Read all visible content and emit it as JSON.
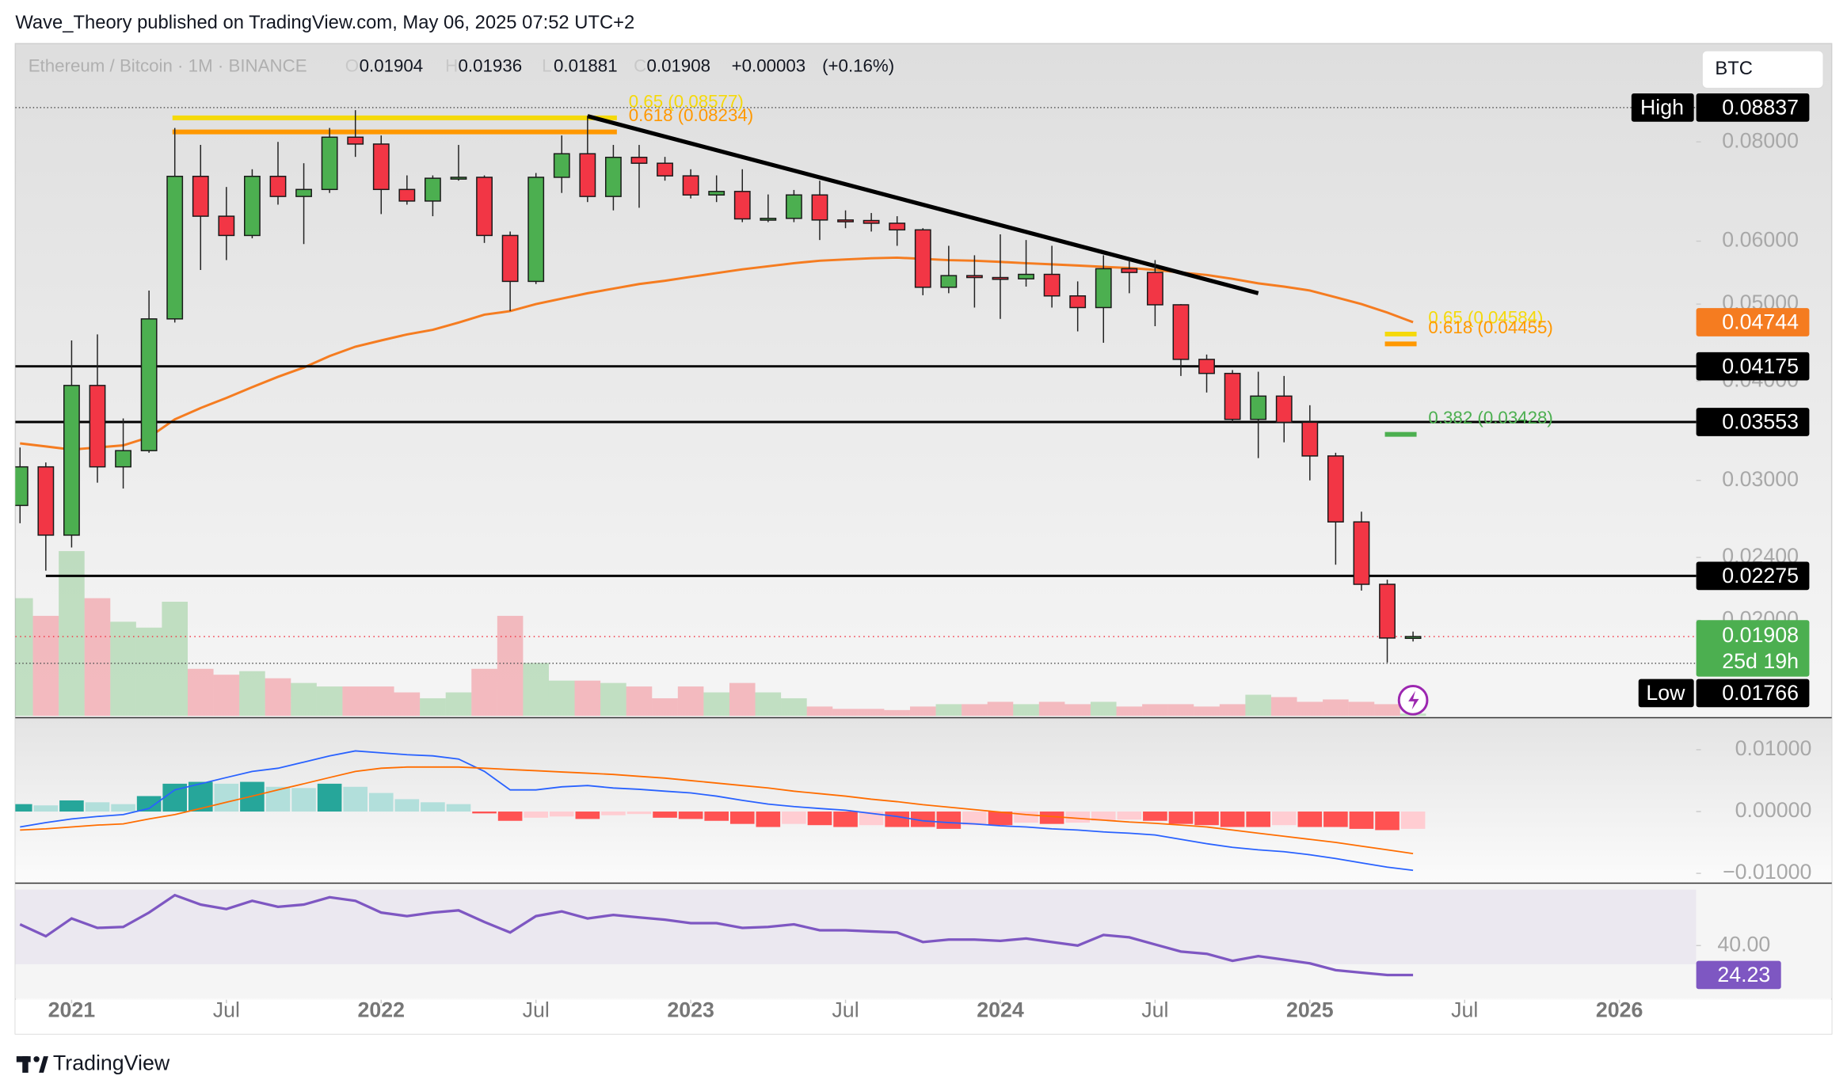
{
  "header": {
    "text": "Wave_Theory published on TradingView.com, May 06, 2025 07:52 UTC+2"
  },
  "footer": {
    "brand": "TradingView"
  },
  "chart_data": {
    "type": "candlestick",
    "symbol": "Ethereum / Bitcoin · 1M · BINANCE",
    "currency": "BTC",
    "legend_labels": [
      "O",
      "H",
      "L",
      "C"
    ],
    "change": {
      "value": 3e-05,
      "label": "+0.00003"
    },
    "change_percent": {
      "value": 0.16,
      "label": "(+0.16%)"
    },
    "log": true,
    "up_color": "#4caf50",
    "down_color": "#f23645",
    "x": [
      "2020-11",
      "2020-12",
      "2021-01",
      "2021-02",
      "2021-03",
      "2021-04",
      "2021-05",
      "2021-06",
      "2021-07",
      "2021-08",
      "2021-09",
      "2021-10",
      "2021-11",
      "2021-12",
      "2022-01",
      "2022-02",
      "2022-03",
      "2022-04",
      "2022-05",
      "2022-06",
      "2022-07",
      "2022-08",
      "2022-09",
      "2022-10",
      "2022-11",
      "2022-12",
      "2023-01",
      "2023-02",
      "2023-03",
      "2023-04",
      "2023-05",
      "2023-06",
      "2023-07",
      "2023-08",
      "2023-09",
      "2023-10",
      "2023-11",
      "2023-12",
      "2024-01",
      "2024-02",
      "2024-03",
      "2024-04",
      "2024-05",
      "2024-06",
      "2024-07",
      "2024-08",
      "2024-09",
      "2024-10",
      "2024-11",
      "2024-12",
      "2025-01",
      "2025-02",
      "2025-03",
      "2025-04",
      "2025-05"
    ],
    "open": [
      0.0279,
      0.0312,
      0.0256,
      0.0395,
      0.0312,
      0.0327,
      0.0479,
      0.0724,
      0.0645,
      0.061,
      0.0724,
      0.0683,
      0.0697,
      0.0811,
      0.0795,
      0.0697,
      0.0674,
      0.072,
      0.0722,
      0.061,
      0.0534,
      0.0722,
      0.0773,
      0.0683,
      0.0765,
      0.0752,
      0.0725,
      0.0686,
      0.0693,
      0.064,
      0.0641,
      0.0686,
      0.0638,
      0.0637,
      0.0632,
      0.062,
      0.0525,
      0.0543,
      0.054,
      0.0538,
      0.0545,
      0.0512,
      0.0495,
      0.0554,
      0.0548,
      0.0499,
      0.0426,
      0.0409,
      0.0358,
      0.0383,
      0.0355,
      0.0322,
      0.0266,
      0.0222,
      0.01904
    ],
    "high": [
      0.033,
      0.0316,
      0.045,
      0.0458,
      0.0359,
      0.052,
      0.0833,
      0.0793,
      0.0702,
      0.0739,
      0.08,
      0.0752,
      0.0833,
      0.0877,
      0.0815,
      0.0726,
      0.0726,
      0.0793,
      0.0726,
      0.0617,
      0.0731,
      0.0815,
      0.0863,
      0.0793,
      0.0793,
      0.0766,
      0.0739,
      0.0726,
      0.0739,
      0.0687,
      0.0696,
      0.0715,
      0.0656,
      0.0651,
      0.0645,
      0.0623,
      0.0592,
      0.0576,
      0.0612,
      0.0602,
      0.0592,
      0.0534,
      0.0576,
      0.0568,
      0.0568,
      0.05,
      0.0432,
      0.0413,
      0.0411,
      0.0406,
      0.0373,
      0.0325,
      0.0274,
      0.0225,
      0.01936
    ],
    "low": [
      0.0265,
      0.0231,
      0.0247,
      0.0298,
      0.0293,
      0.0325,
      0.0474,
      0.0552,
      0.0568,
      0.0605,
      0.0667,
      0.0595,
      0.069,
      0.0766,
      0.0649,
      0.0667,
      0.0645,
      0.0715,
      0.0597,
      0.049,
      0.053,
      0.069,
      0.0672,
      0.0656,
      0.0661,
      0.0715,
      0.0679,
      0.0672,
      0.0634,
      0.0634,
      0.0634,
      0.0602,
      0.0623,
      0.0617,
      0.0592,
      0.0513,
      0.0516,
      0.0495,
      0.0479,
      0.0526,
      0.0495,
      0.0462,
      0.0447,
      0.0516,
      0.0469,
      0.0406,
      0.0387,
      0.0355,
      0.032,
      0.0335,
      0.03,
      0.0235,
      0.0218,
      0.0177,
      0.01881
    ],
    "close": [
      0.0312,
      0.0256,
      0.0395,
      0.0312,
      0.0327,
      0.0479,
      0.0724,
      0.0645,
      0.061,
      0.0724,
      0.0683,
      0.0697,
      0.0811,
      0.0795,
      0.0697,
      0.0674,
      0.072,
      0.0722,
      0.061,
      0.0534,
      0.0722,
      0.0773,
      0.0683,
      0.0765,
      0.0752,
      0.0725,
      0.0686,
      0.0693,
      0.064,
      0.0641,
      0.0686,
      0.0638,
      0.0637,
      0.0632,
      0.062,
      0.0525,
      0.0543,
      0.054,
      0.0538,
      0.0545,
      0.0512,
      0.0495,
      0.0554,
      0.0548,
      0.0499,
      0.0426,
      0.0409,
      0.0358,
      0.0383,
      0.0355,
      0.0322,
      0.0266,
      0.0222,
      0.019,
      0.01908
    ],
    "countdown": "25d 19h",
    "ylim": [
      0.01516,
      0.106
    ],
    "yticks": [
      {
        "value": 0.08,
        "label": "0.08000"
      },
      {
        "value": 0.06,
        "label": "0.06000"
      },
      {
        "value": 0.05,
        "label": "0.05000"
      },
      {
        "value": 0.04,
        "label": "0.04000"
      },
      {
        "value": 0.03,
        "label": "0.03000"
      },
      {
        "value": 0.024,
        "label": "0.02400"
      },
      {
        "value": 0.02,
        "label": "0.02000"
      }
    ],
    "xticks": [
      {
        "value": "2021-01",
        "label": "2021"
      },
      {
        "value": "2021-07",
        "label": "Jul"
      },
      {
        "value": "2022-01",
        "label": "2022"
      },
      {
        "value": "2022-07",
        "label": "Jul"
      },
      {
        "value": "2023-01",
        "label": "2023"
      },
      {
        "value": "2023-07",
        "label": "Jul"
      },
      {
        "value": "2024-01",
        "label": "2024"
      },
      {
        "value": "2024-07",
        "label": "Jul"
      },
      {
        "value": "2025-01",
        "label": "2025"
      },
      {
        "value": "2025-07",
        "label": "Jul"
      },
      {
        "value": "2026-01",
        "label": "2026"
      }
    ],
    "ma": {
      "color": "#f57c20",
      "values": [
        0.0334,
        0.0331,
        0.0328,
        0.033,
        0.0332,
        0.034,
        0.0358,
        0.037,
        0.0381,
        0.0393,
        0.0405,
        0.0416,
        0.043,
        0.0442,
        0.045,
        0.0458,
        0.0464,
        0.0474,
        0.0485,
        0.049,
        0.05,
        0.0508,
        0.0516,
        0.0523,
        0.053,
        0.0535,
        0.0541,
        0.0547,
        0.0553,
        0.0558,
        0.0563,
        0.0567,
        0.0569,
        0.0571,
        0.0572,
        0.057,
        0.0568,
        0.0567,
        0.0565,
        0.0563,
        0.0561,
        0.0559,
        0.0557,
        0.0555,
        0.0552,
        0.0548,
        0.0544,
        0.0538,
        0.0531,
        0.0526,
        0.052,
        0.051,
        0.05,
        0.0488,
        0.04744
      ]
    },
    "volume": {
      "values": [
        100,
        85,
        140,
        100,
        80,
        75,
        97,
        40,
        35,
        38,
        32,
        28,
        25,
        25,
        25,
        20,
        15,
        20,
        40,
        85,
        45,
        30,
        30,
        28,
        25,
        15,
        25,
        20,
        28,
        20,
        15,
        8,
        6,
        6,
        5,
        8,
        10,
        10,
        12,
        10,
        12,
        10,
        12,
        8,
        10,
        10,
        8,
        10,
        18,
        16,
        12,
        14,
        12,
        10,
        2
      ]
    },
    "levels": [
      {
        "value": 0.04175
      },
      {
        "value": 0.03553
      },
      {
        "value": 0.02275,
        "from": "2020-12"
      }
    ],
    "high_mark": {
      "label": "High",
      "value": 0.08837
    },
    "low_mark": {
      "label": "Low",
      "value": 0.01766
    },
    "fib": [
      {
        "label": "0.65 (0.08577)",
        "value": 0.08577,
        "color": "#f5d90a",
        "from": "2021-05",
        "to": "2022-10"
      },
      {
        "label": "0.618 (0.08234)",
        "value": 0.08234,
        "color": "#ff9800",
        "from": "2021-05",
        "to": "2022-10"
      },
      {
        "label": "0.65 (0.04584)",
        "value": 0.04584,
        "color": "#f5d90a",
        "from": "2025-04",
        "to": "2025-05"
      },
      {
        "label": "0.618 (0.04455)",
        "value": 0.04455,
        "color": "#ff9800",
        "from": "2025-04",
        "to": "2025-05"
      },
      {
        "label": "0.382 (0.03428)",
        "value": 0.03428,
        "color": "#4caf50",
        "from": "2025-04",
        "to": "2025-05"
      }
    ],
    "trend": {
      "x": [
        "2022-09",
        "2024-11"
      ],
      "values": [
        0.0862,
        0.0516
      ]
    },
    "macd": {
      "ylim": [
        -0.0112,
        0.0147
      ],
      "yticks": [
        {
          "value": 0.01,
          "label": "0.01000"
        },
        {
          "value": 0,
          "label": "0.00000"
        },
        {
          "value": -0.01,
          "label": "−0.01000"
        }
      ],
      "hist_colors": [
        "#26a69a",
        "#b2dfdb",
        "#ff5252",
        "#ffcdd2"
      ],
      "histogram": [
        0.0012,
        0.001,
        0.0018,
        0.0015,
        0.0012,
        0.0025,
        0.0045,
        0.0048,
        0.0045,
        0.0048,
        0.004,
        0.0038,
        0.0045,
        0.004,
        0.003,
        0.002,
        0.0015,
        0.0012,
        -0.0003,
        -0.0015,
        -0.001,
        -0.0008,
        -0.0012,
        -0.0006,
        -0.0004,
        -0.001,
        -0.0012,
        -0.0015,
        -0.002,
        -0.0025,
        -0.002,
        -0.0022,
        -0.0025,
        -0.0022,
        -0.0025,
        -0.0025,
        -0.0028,
        -0.0022,
        -0.0022,
        -0.0018,
        -0.002,
        -0.0018,
        -0.0015,
        -0.0013,
        -0.0015,
        -0.002,
        -0.0022,
        -0.0025,
        -0.0025,
        -0.0022,
        -0.0025,
        -0.0025,
        -0.0028,
        -0.003,
        -0.0028
      ],
      "macd": {
        "color": "#2962ff",
        "values": [
          -0.0025,
          -0.0018,
          -0.0012,
          -0.0008,
          -0.0005,
          0.0005,
          0.0035,
          0.0045,
          0.0055,
          0.0065,
          0.007,
          0.008,
          0.009,
          0.0098,
          0.0095,
          0.0092,
          0.009,
          0.0085,
          0.0065,
          0.0035,
          0.0035,
          0.004,
          0.0042,
          0.0038,
          0.0036,
          0.0033,
          0.003,
          0.0025,
          0.0018,
          0.0012,
          0.0008,
          0.0005,
          0.0002,
          -0.0003,
          -0.0008,
          -0.0015,
          -0.0018,
          -0.002,
          -0.0023,
          -0.0025,
          -0.0028,
          -0.003,
          -0.0033,
          -0.0035,
          -0.0038,
          -0.0045,
          -0.0052,
          -0.0058,
          -0.0062,
          -0.0065,
          -0.007,
          -0.0076,
          -0.0083,
          -0.009,
          -0.0095
        ]
      },
      "signal": {
        "color": "#ff6d00",
        "values": [
          -0.003,
          -0.0028,
          -0.0025,
          -0.0022,
          -0.002,
          -0.0012,
          -0.0005,
          0.0005,
          0.0015,
          0.0025,
          0.0035,
          0.0045,
          0.0055,
          0.0065,
          0.007,
          0.0072,
          0.0072,
          0.0072,
          0.007,
          0.0068,
          0.0066,
          0.0064,
          0.0062,
          0.006,
          0.0057,
          0.0054,
          0.005,
          0.0046,
          0.0042,
          0.0038,
          0.0033,
          0.0029,
          0.0025,
          0.002,
          0.0016,
          0.0011,
          0.0007,
          0.0003,
          -0.0001,
          -0.0005,
          -0.0008,
          -0.0011,
          -0.0014,
          -0.0017,
          -0.0019,
          -0.0022,
          -0.0025,
          -0.003,
          -0.0035,
          -0.004,
          -0.0045,
          -0.005,
          -0.0056,
          -0.0062,
          -0.0068
        ]
      }
    },
    "rsi": {
      "color": "#7e57c2",
      "ylim": [
        11.6,
        72.2
      ],
      "band": [
        30,
        70
      ],
      "yticks": [
        {
          "value": 40,
          "label": "40.00"
        }
      ],
      "values": [
        51.4,
        45,
        54.5,
        49.5,
        50,
        57.7,
        67,
        62,
        59.6,
        64,
        60.8,
        62,
        65.9,
        64,
        57.7,
        55.8,
        57.7,
        58.9,
        52.6,
        47,
        55.8,
        58.3,
        54.5,
        56.4,
        55.1,
        53.9,
        52,
        52,
        49.5,
        50,
        51.4,
        48.2,
        48.2,
        47.6,
        47,
        41.9,
        43.2,
        43.2,
        42.5,
        43.8,
        41.9,
        40,
        45.7,
        44.4,
        40.6,
        36.8,
        35.6,
        31.8,
        34.3,
        32.4,
        30.5,
        26.8,
        25.5,
        24.2,
        24.23
      ]
    }
  }
}
